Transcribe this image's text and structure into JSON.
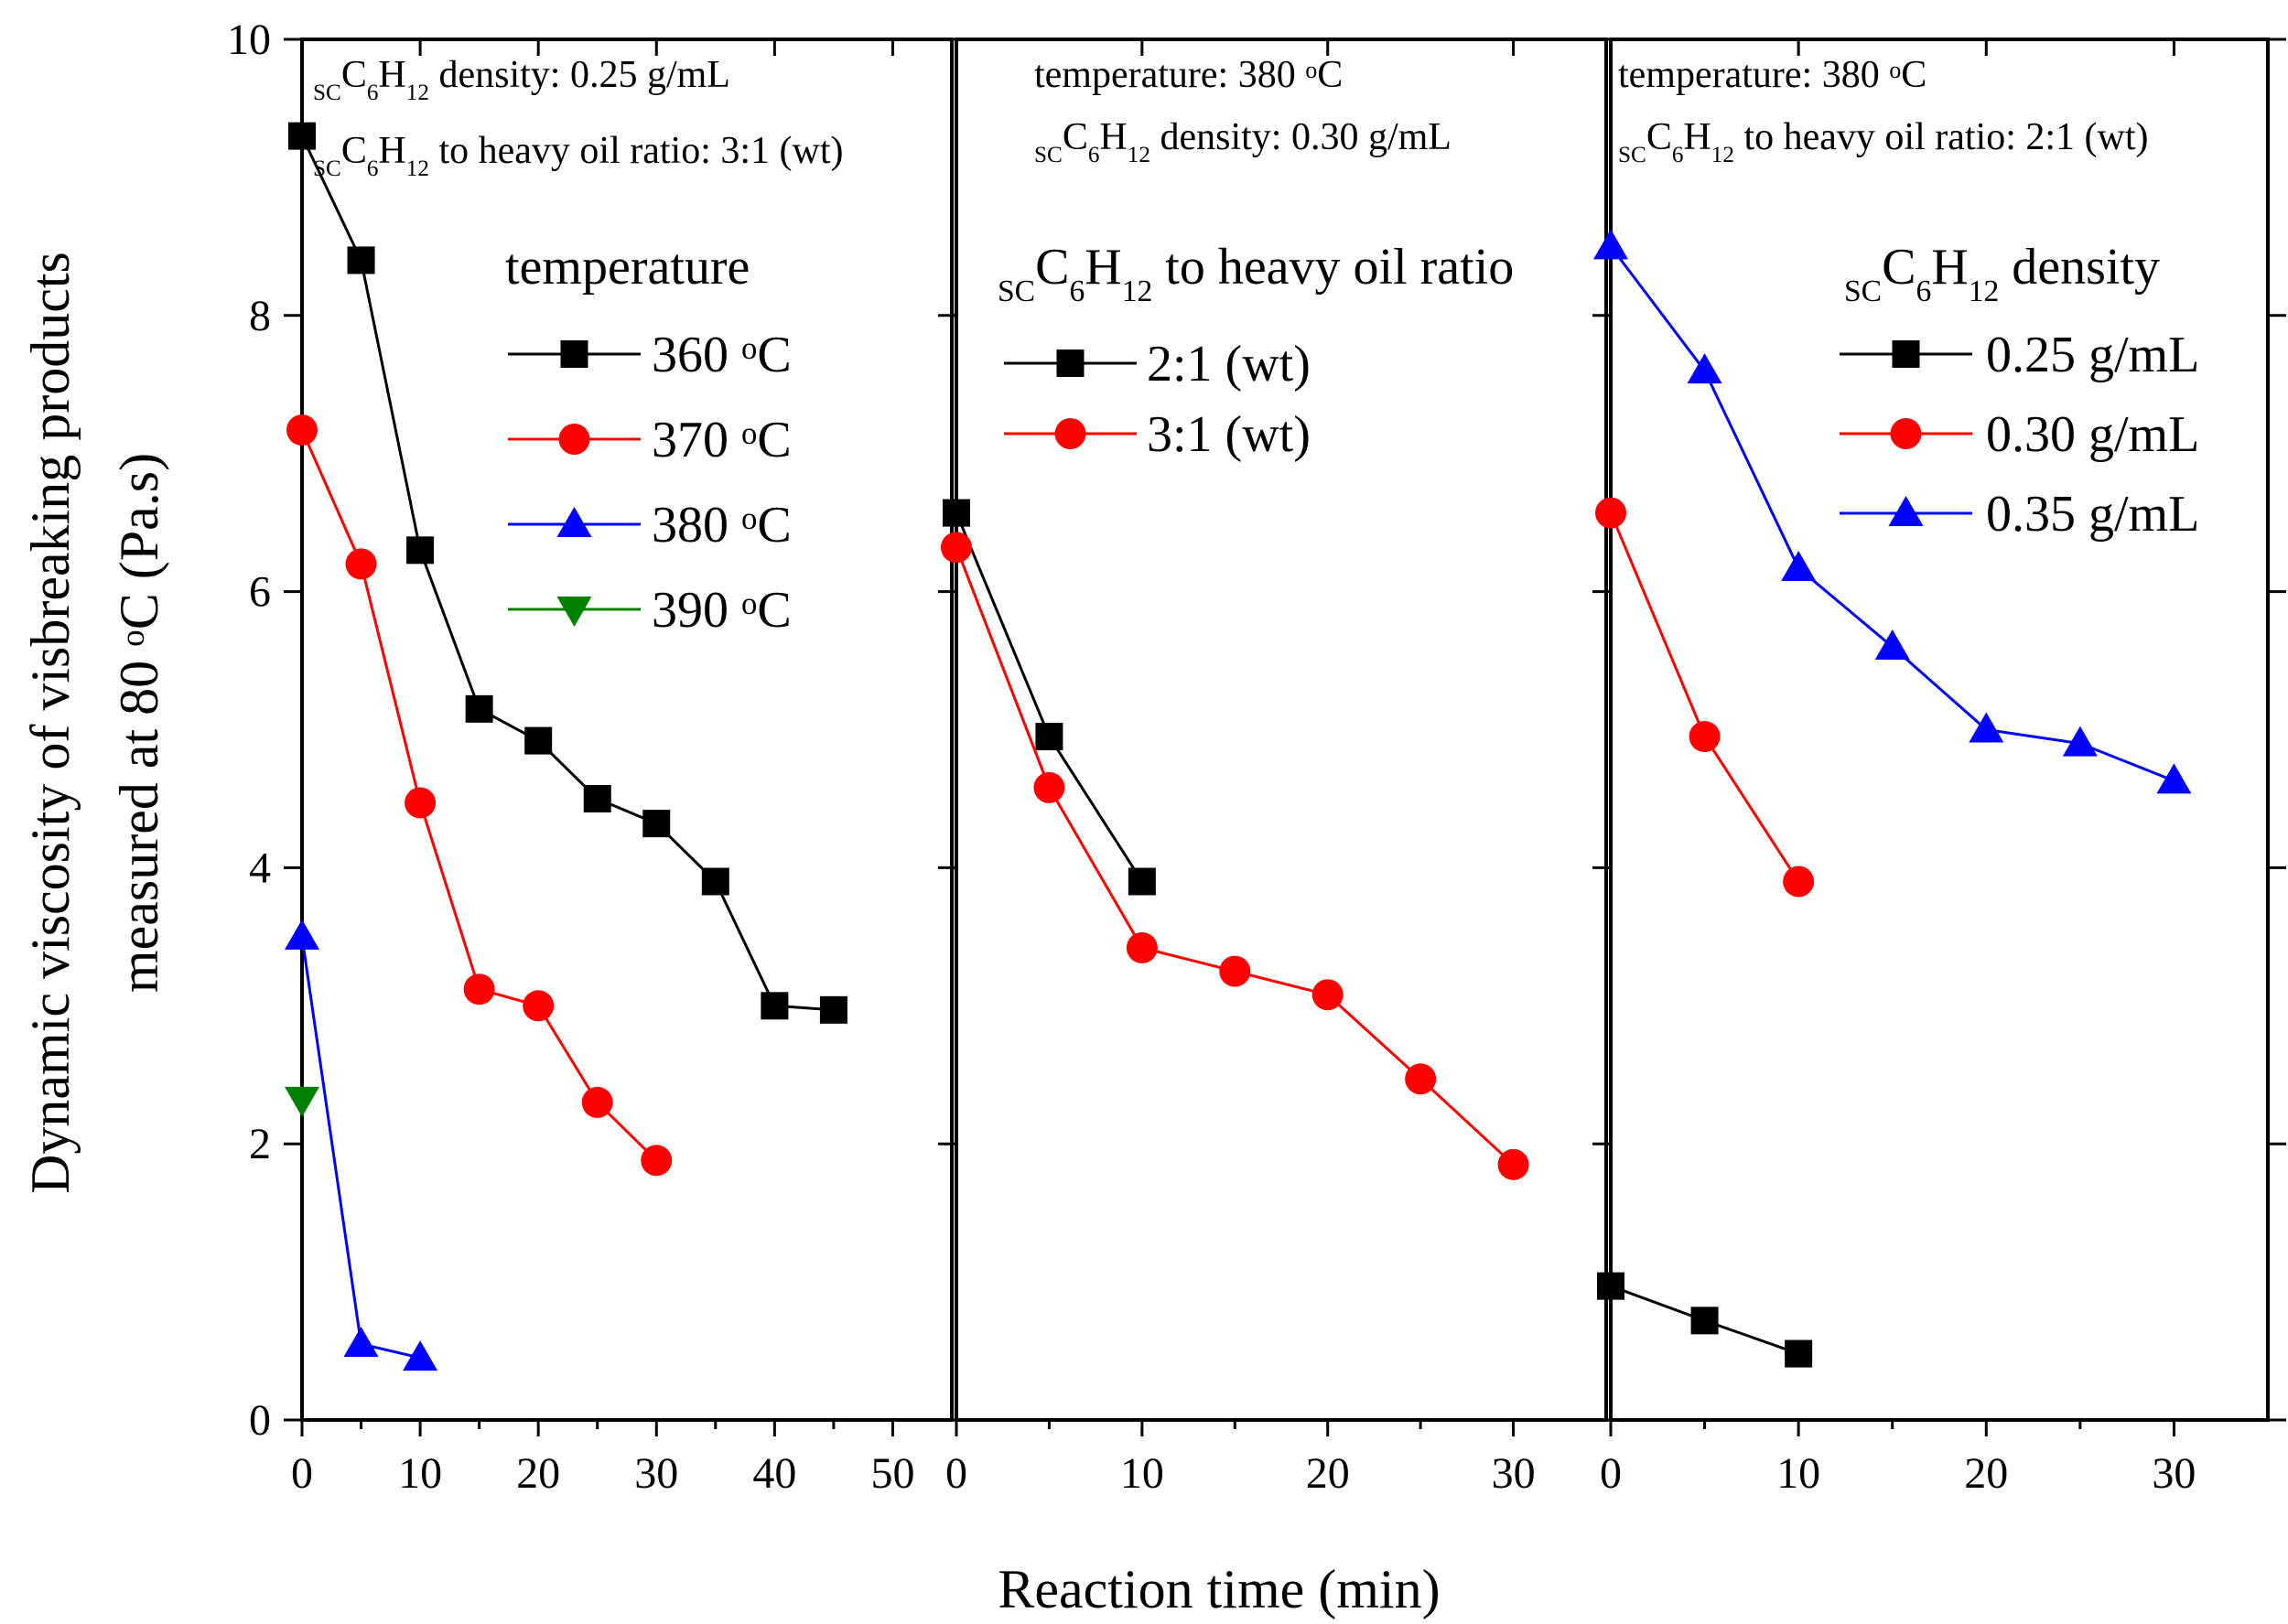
{
  "chart_data": {
    "type": "line",
    "xlabel": "Reaction time (min)",
    "ylabel": [
      "Dynamic viscosity of visbreaking products",
      "measured at 80 °C (Pa.s)"
    ],
    "ylim": [
      0,
      10
    ],
    "yticks": [
      "0",
      "2",
      "4",
      "6",
      "8",
      "10"
    ],
    "panels": [
      {
        "id": "temperature",
        "xlim": [
          0,
          55
        ],
        "xticks": [
          "0",
          "10",
          "20",
          "30",
          "40",
          "50"
        ],
        "annotations": [
          "scC6H12 density: 0.25 g/mL",
          "scC6H12 to heavy oil ratio: 3:1 (wt)"
        ],
        "legend_title": "temperature",
        "series": [
          {
            "name": "360 °C",
            "color": "#000000",
            "marker": "square",
            "x": [
              0,
              5,
              10,
              15,
              20,
              25,
              30,
              35,
              40,
              45
            ],
            "y": [
              9.3,
              8.4,
              6.3,
              5.15,
              4.92,
              4.5,
              4.32,
              3.9,
              3.0,
              2.97
            ]
          },
          {
            "name": "370 °C",
            "color": "#ff0000",
            "marker": "circle",
            "x": [
              0,
              5,
              10,
              15,
              20,
              25,
              30
            ],
            "y": [
              7.17,
              6.2,
              4.47,
              3.12,
              3.0,
              2.3,
              1.88
            ]
          },
          {
            "name": "380 °C",
            "color": "#0000ff",
            "marker": "triangle-up",
            "x": [
              0,
              5,
              10
            ],
            "y": [
              3.5,
              0.55,
              0.45
            ]
          },
          {
            "name": "390 °C",
            "color": "#008000",
            "marker": "triangle-down",
            "x": [
              0
            ],
            "y": [
              2.32
            ]
          }
        ]
      },
      {
        "id": "ratio",
        "xlim": [
          0,
          35
        ],
        "xticks": [
          "0",
          "10",
          "20",
          "30"
        ],
        "annotations": [
          "temperature: 380 °C",
          "scC6H12 density: 0.30 g/mL"
        ],
        "legend_title": "scC6H12 to heavy oil ratio",
        "series": [
          {
            "name": "2:1  (wt)",
            "color": "#000000",
            "marker": "square",
            "x": [
              0,
              5,
              10
            ],
            "y": [
              6.57,
              4.95,
              3.9
            ]
          },
          {
            "name": "3:1  (wt)",
            "color": "#ff0000",
            "marker": "circle",
            "x": [
              0,
              5,
              10,
              15,
              20,
              25,
              30
            ],
            "y": [
              6.32,
              4.58,
              3.42,
              3.25,
              3.08,
              2.47,
              1.85
            ]
          }
        ]
      },
      {
        "id": "density",
        "xlim": [
          0,
          35
        ],
        "xticks": [
          "0",
          "10",
          "20",
          "30"
        ],
        "annotations": [
          "temperature: 380 °C",
          "scC6H12 to heavy oil ratio: 2:1 (wt)"
        ],
        "legend_title": "scC6H12 density",
        "series": [
          {
            "name": "0.25 g/mL",
            "color": "#000000",
            "marker": "square",
            "x": [
              0,
              5,
              10
            ],
            "y": [
              0.97,
              0.72,
              0.48
            ]
          },
          {
            "name": "0.30 g/mL",
            "color": "#ff0000",
            "marker": "circle",
            "x": [
              0,
              5,
              10
            ],
            "y": [
              6.57,
              4.95,
              3.9
            ]
          },
          {
            "name": "0.35 g/mL",
            "color": "#0000ff",
            "marker": "triangle-up",
            "x": [
              0,
              5,
              10,
              15,
              20,
              25,
              30
            ],
            "y": [
              8.5,
              7.6,
              6.17,
              5.6,
              5.0,
              4.9,
              4.63
            ]
          }
        ]
      }
    ]
  }
}
